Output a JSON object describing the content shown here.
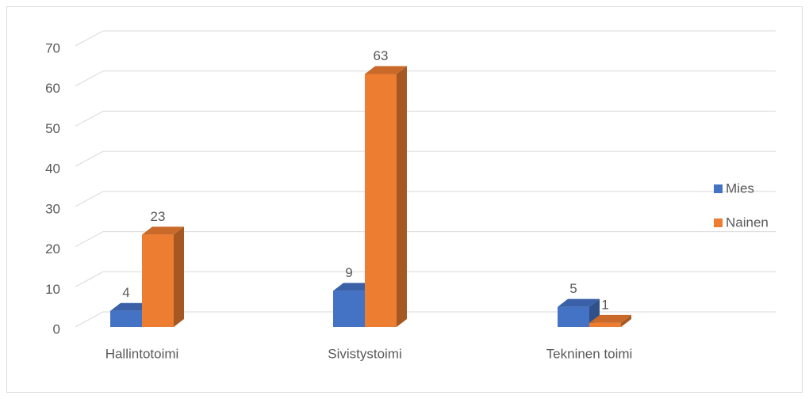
{
  "chart_data": {
    "type": "bar3d",
    "categories": [
      "Hallintotoimi",
      "Sivistystoimi",
      "Tekninen toimi"
    ],
    "series": [
      {
        "name": "Mies",
        "color": "#4472c4",
        "values": [
          4,
          9,
          5
        ]
      },
      {
        "name": "Nainen",
        "color": "#ed7d31",
        "values": [
          23,
          63,
          1
        ]
      }
    ],
    "ylim": [
      0,
      70
    ],
    "yticks": [
      0,
      10,
      20,
      30,
      40,
      50,
      60,
      70
    ],
    "grid": true,
    "legend": "right"
  }
}
